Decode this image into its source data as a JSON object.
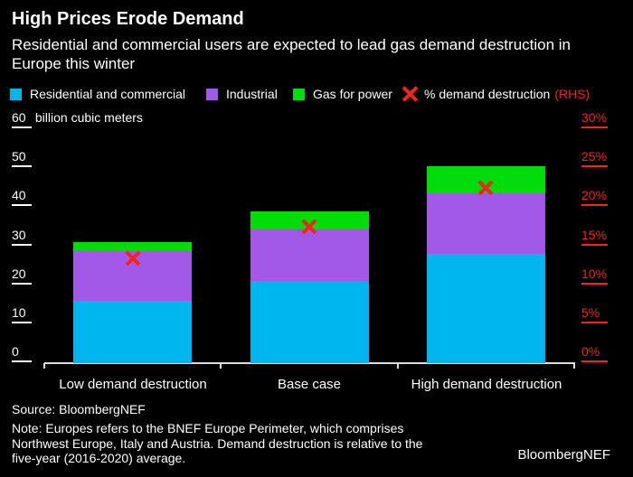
{
  "header": {
    "title": "High Prices Erode Demand",
    "subtitle_lines": [
      "Residential and commercial users are expected to lead gas demand destruction in",
      "Europe this winter"
    ]
  },
  "legend": {
    "items": [
      {
        "name": "Residential and commercial",
        "marker": "square",
        "color": "#00b6ef"
      },
      {
        "name": "Industrial",
        "marker": "square",
        "color": "#a259e8"
      },
      {
        "name": "Gas for power",
        "marker": "square",
        "color": "#00dc0a"
      },
      {
        "name": "% demand destruction",
        "suffix": "(RHS)",
        "marker": "x",
        "color": "#f2241d"
      }
    ]
  },
  "chart_data": {
    "type": "bar",
    "stacked": true,
    "grid": false,
    "legend_position": "top",
    "categories": [
      "Low demand destruction",
      "Base case",
      "High demand destruction"
    ],
    "series": [
      {
        "name": "Residential and commercial",
        "color": "#00b6ef",
        "values": [
          16,
          21,
          28
        ]
      },
      {
        "name": "Industrial",
        "color": "#a259e8",
        "values": [
          13,
          13.5,
          15.5
        ]
      },
      {
        "name": "Gas for power",
        "color": "#00dc0a",
        "values": [
          2,
          4.5,
          7
        ]
      }
    ],
    "totals": [
      31,
      39,
      50.5
    ],
    "scatter": {
      "name": "% demand destruction (RHS)",
      "marker": "x",
      "color": "#f2241d",
      "axis": "right",
      "values_pct": [
        13.5,
        17.5,
        22.5
      ]
    },
    "left_axis": {
      "unit_label": "billion cubic meters",
      "ticks": [
        0,
        10,
        20,
        30,
        40,
        50,
        60
      ],
      "range": [
        0,
        60
      ]
    },
    "right_axis": {
      "ticks_pct": [
        0,
        5,
        10,
        15,
        20,
        25,
        30
      ],
      "range_pct": [
        0,
        30
      ],
      "tick_suffix": "%"
    }
  },
  "footer": {
    "source": "Source: BloombergNEF",
    "note_lines": [
      "Note: Europes refers to the BNEF Europe Perimeter, which comprises",
      "Northwest Europe, Italy and Austria. Demand destruction is relative to the",
      "five-year (2016-2020) average."
    ],
    "brand": "BloombergNEF"
  },
  "colors": {
    "background": "#000000",
    "text": "#ffffff",
    "axis_line": "#dcdcdc",
    "red": "#f2241d"
  }
}
